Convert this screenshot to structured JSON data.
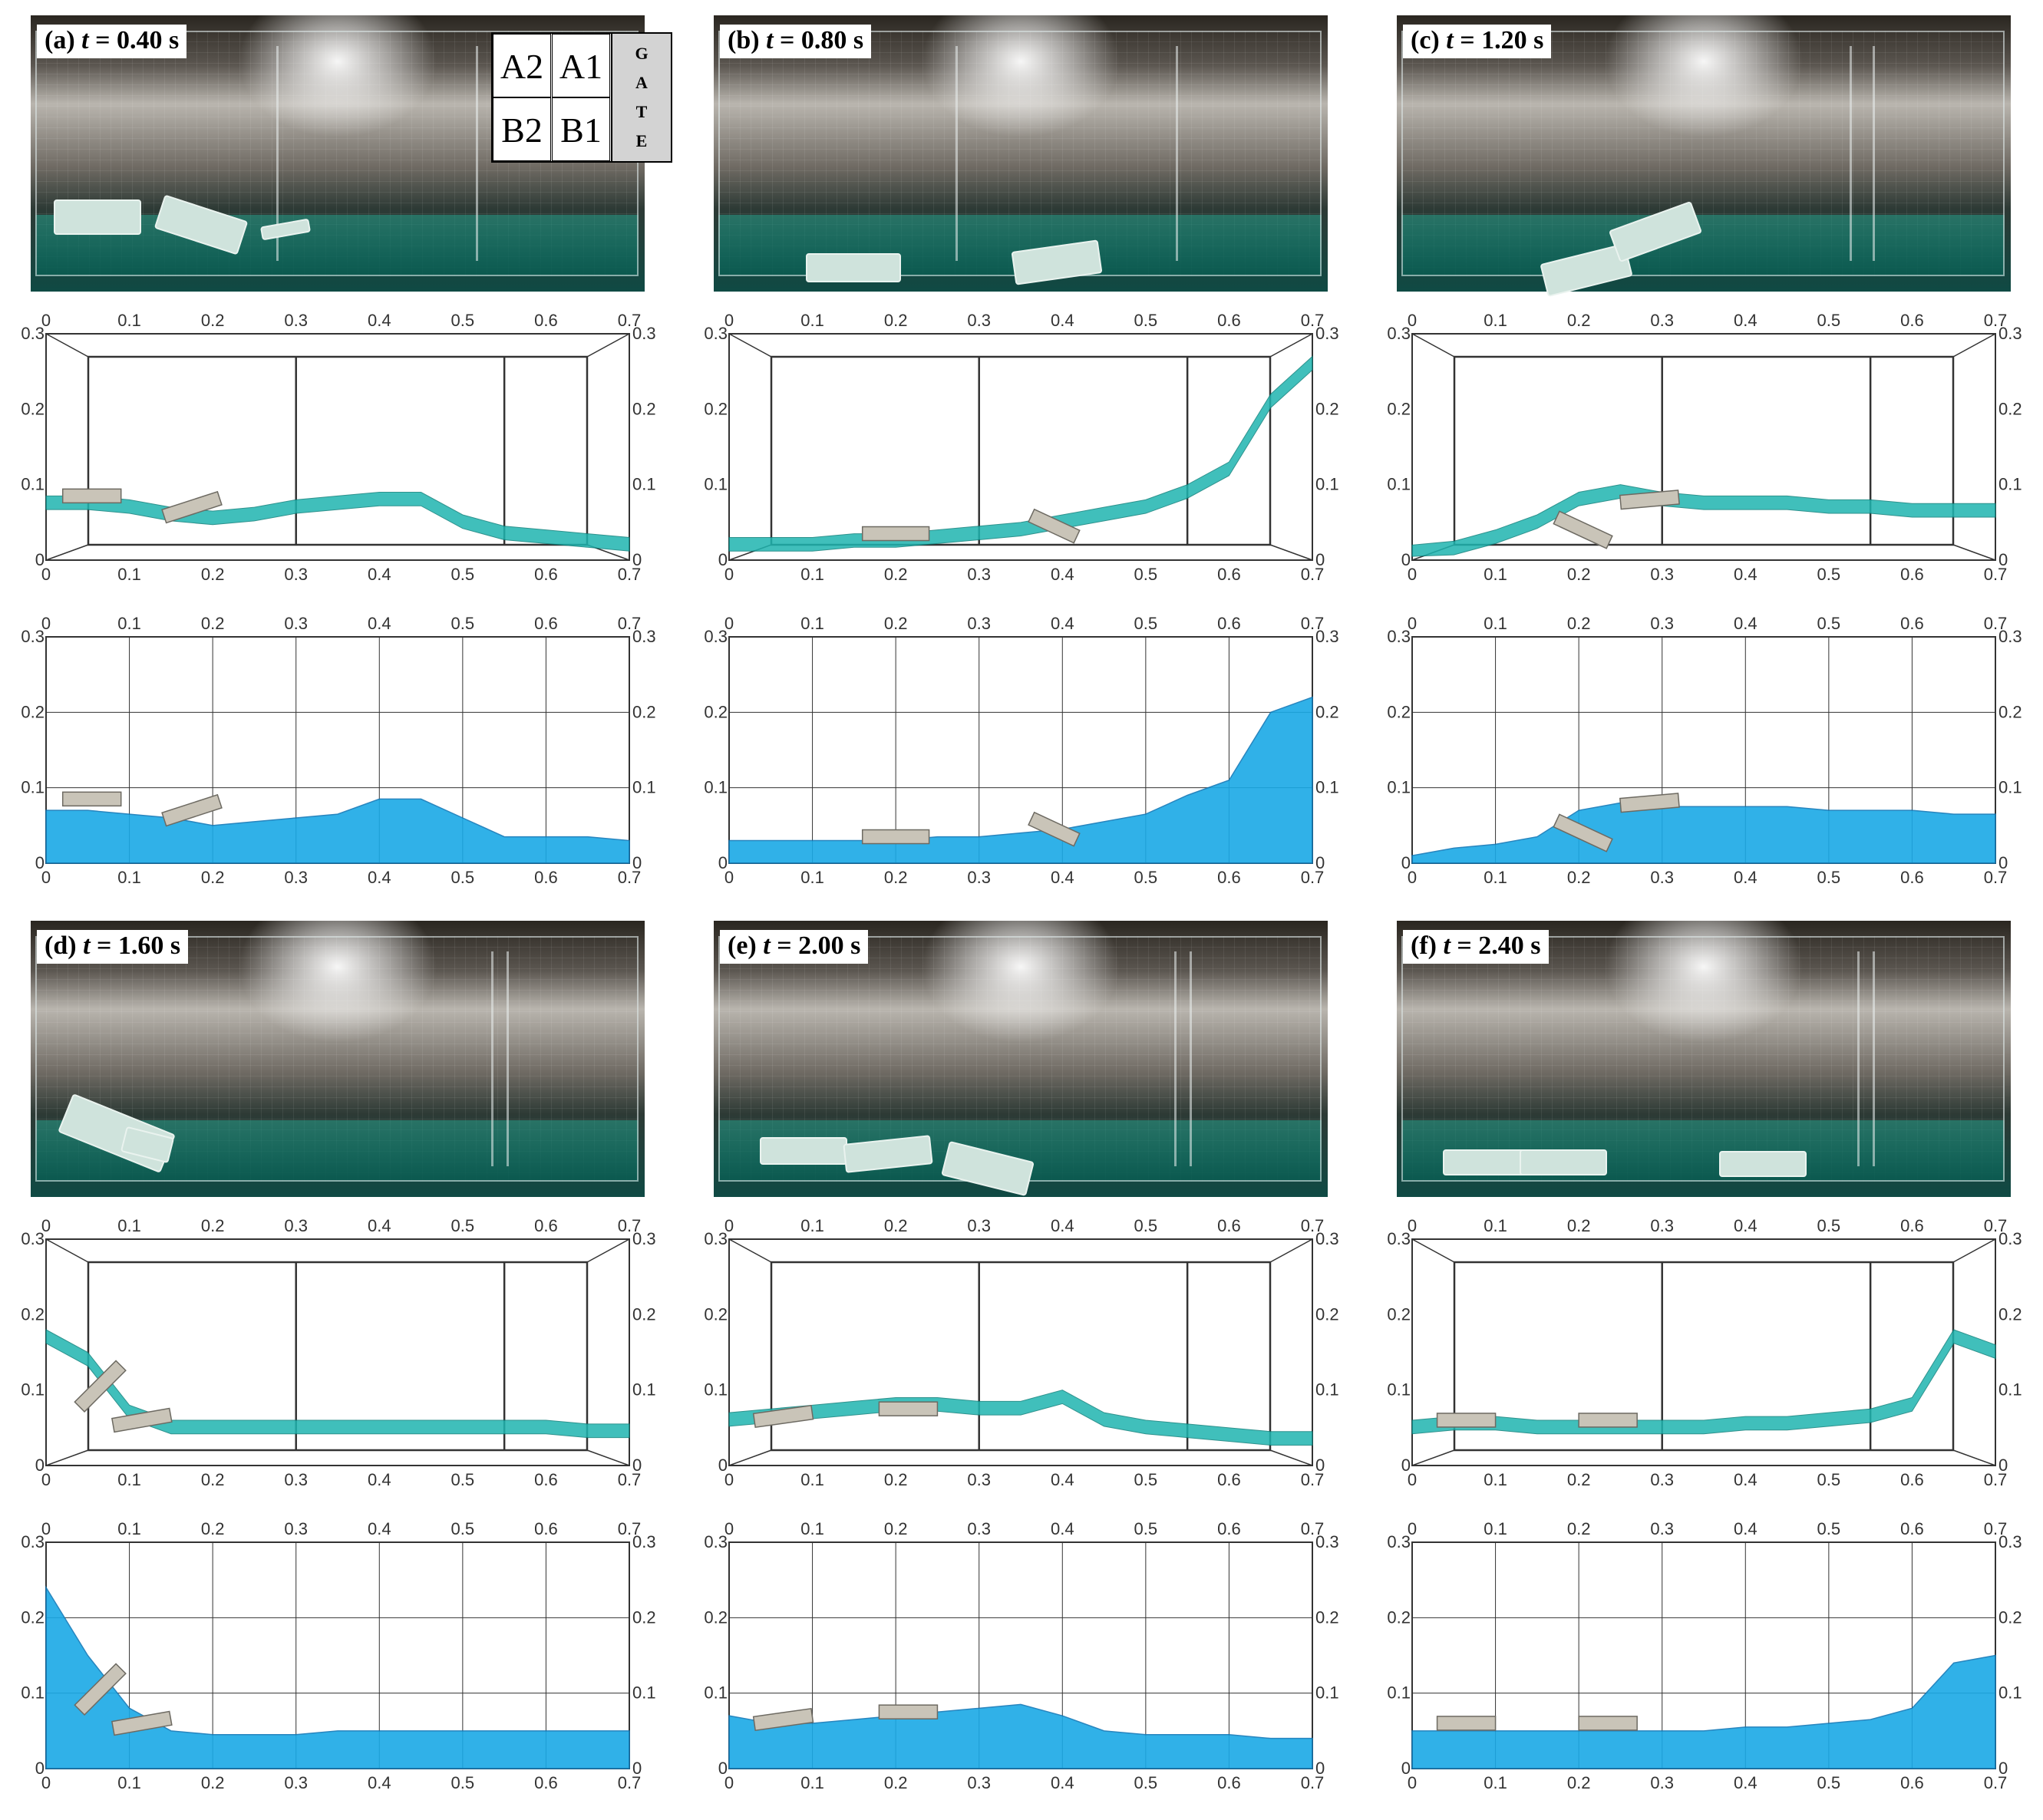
{
  "panels": [
    {
      "label": "(a) t = 0.40 s",
      "prefix": "(a) ",
      "var": "t",
      "rest": " = 0.40 s"
    },
    {
      "label": "(b) t = 0.80 s",
      "prefix": "(b) ",
      "var": "t",
      "rest": " = 0.80 s"
    },
    {
      "label": "(c) t = 1.20 s",
      "prefix": "(c) ",
      "var": "t",
      "rest": " = 1.20 s"
    },
    {
      "label": "(d) t = 1.60 s",
      "prefix": "(d) ",
      "var": "t",
      "rest": " = 1.60 s"
    },
    {
      "label": "(e) t = 2.00 s",
      "prefix": "(e) ",
      "var": "t",
      "rest": " = 2.00 s"
    },
    {
      "label": "(f) t = 2.40 s",
      "prefix": "(f) ",
      "var": "t",
      "rest": " = 2.40 s"
    }
  ],
  "legend": {
    "cells": [
      "A2",
      "A1",
      "B2",
      "B1"
    ],
    "gate": [
      "G",
      "A",
      "T",
      "E"
    ]
  },
  "axes": {
    "x_ticks": [
      "0",
      "0.1",
      "0.2",
      "0.3",
      "0.4",
      "0.5",
      "0.6",
      "0.7"
    ],
    "y_ticks": [
      "0",
      "0.1",
      "0.2",
      "0.3"
    ]
  },
  "colors": {
    "particles": "#1fb5b0",
    "mesh_fluid": "#1aa9e6",
    "block": "#c9c4b8",
    "grid": "#333333"
  },
  "chart_data": [
    {
      "type": "area",
      "name": "a-particle",
      "x": [
        0.0,
        0.05,
        0.1,
        0.15,
        0.2,
        0.25,
        0.3,
        0.35,
        0.4,
        0.45,
        0.5,
        0.55,
        0.6,
        0.65,
        0.7
      ],
      "y": [
        0.085,
        0.085,
        0.08,
        0.07,
        0.065,
        0.07,
        0.08,
        0.085,
        0.09,
        0.09,
        0.06,
        0.045,
        0.04,
        0.035,
        0.03
      ],
      "xlim": [
        0,
        0.7
      ],
      "ylim": [
        0,
        0.3
      ]
    },
    {
      "type": "area",
      "name": "a-mesh",
      "x": [
        0.0,
        0.05,
        0.1,
        0.15,
        0.2,
        0.25,
        0.3,
        0.35,
        0.4,
        0.45,
        0.5,
        0.55,
        0.6,
        0.65,
        0.7
      ],
      "y": [
        0.07,
        0.07,
        0.065,
        0.06,
        0.05,
        0.055,
        0.06,
        0.065,
        0.085,
        0.085,
        0.06,
        0.035,
        0.035,
        0.035,
        0.03
      ],
      "xlim": [
        0,
        0.7
      ],
      "ylim": [
        0,
        0.3
      ]
    },
    {
      "type": "area",
      "name": "b-particle",
      "x": [
        0.0,
        0.05,
        0.1,
        0.15,
        0.2,
        0.25,
        0.3,
        0.35,
        0.4,
        0.45,
        0.5,
        0.55,
        0.6,
        0.65,
        0.7
      ],
      "y": [
        0.03,
        0.03,
        0.03,
        0.035,
        0.035,
        0.04,
        0.045,
        0.05,
        0.06,
        0.07,
        0.08,
        0.1,
        0.13,
        0.22,
        0.27
      ],
      "xlim": [
        0,
        0.7
      ],
      "ylim": [
        0,
        0.3
      ]
    },
    {
      "type": "area",
      "name": "b-mesh",
      "x": [
        0.0,
        0.05,
        0.1,
        0.15,
        0.2,
        0.25,
        0.3,
        0.35,
        0.4,
        0.45,
        0.5,
        0.55,
        0.6,
        0.65,
        0.7
      ],
      "y": [
        0.03,
        0.03,
        0.03,
        0.03,
        0.03,
        0.035,
        0.035,
        0.04,
        0.045,
        0.055,
        0.065,
        0.09,
        0.11,
        0.2,
        0.22
      ],
      "xlim": [
        0,
        0.7
      ],
      "ylim": [
        0,
        0.3
      ]
    },
    {
      "type": "area",
      "name": "c-particle",
      "x": [
        0.0,
        0.05,
        0.1,
        0.15,
        0.2,
        0.25,
        0.3,
        0.35,
        0.4,
        0.45,
        0.5,
        0.55,
        0.6,
        0.65,
        0.7
      ],
      "y": [
        0.02,
        0.025,
        0.04,
        0.06,
        0.09,
        0.1,
        0.09,
        0.085,
        0.085,
        0.085,
        0.08,
        0.08,
        0.075,
        0.075,
        0.075
      ],
      "xlim": [
        0,
        0.7
      ],
      "ylim": [
        0,
        0.3
      ]
    },
    {
      "type": "area",
      "name": "c-mesh",
      "x": [
        0.0,
        0.05,
        0.1,
        0.15,
        0.2,
        0.25,
        0.3,
        0.35,
        0.4,
        0.45,
        0.5,
        0.55,
        0.6,
        0.65,
        0.7
      ],
      "y": [
        0.01,
        0.02,
        0.025,
        0.035,
        0.07,
        0.08,
        0.075,
        0.075,
        0.075,
        0.075,
        0.07,
        0.07,
        0.07,
        0.065,
        0.065
      ],
      "xlim": [
        0,
        0.7
      ],
      "ylim": [
        0,
        0.3
      ]
    },
    {
      "type": "area",
      "name": "d-particle",
      "x": [
        0.0,
        0.05,
        0.1,
        0.15,
        0.2,
        0.25,
        0.3,
        0.35,
        0.4,
        0.45,
        0.5,
        0.55,
        0.6,
        0.65,
        0.7
      ],
      "y": [
        0.18,
        0.15,
        0.08,
        0.06,
        0.06,
        0.06,
        0.06,
        0.06,
        0.06,
        0.06,
        0.06,
        0.06,
        0.06,
        0.055,
        0.055
      ],
      "xlim": [
        0,
        0.7
      ],
      "ylim": [
        0,
        0.3
      ]
    },
    {
      "type": "area",
      "name": "d-mesh",
      "x": [
        0.0,
        0.05,
        0.1,
        0.15,
        0.2,
        0.25,
        0.3,
        0.35,
        0.4,
        0.45,
        0.5,
        0.55,
        0.6,
        0.65,
        0.7
      ],
      "y": [
        0.24,
        0.15,
        0.08,
        0.05,
        0.045,
        0.045,
        0.045,
        0.05,
        0.05,
        0.05,
        0.05,
        0.05,
        0.05,
        0.05,
        0.05
      ],
      "xlim": [
        0,
        0.7
      ],
      "ylim": [
        0,
        0.3
      ]
    },
    {
      "type": "area",
      "name": "e-particle",
      "x": [
        0.0,
        0.05,
        0.1,
        0.15,
        0.2,
        0.25,
        0.3,
        0.35,
        0.4,
        0.45,
        0.5,
        0.55,
        0.6,
        0.65,
        0.7
      ],
      "y": [
        0.07,
        0.075,
        0.08,
        0.085,
        0.09,
        0.09,
        0.085,
        0.085,
        0.1,
        0.07,
        0.06,
        0.055,
        0.05,
        0.045,
        0.045
      ],
      "xlim": [
        0,
        0.7
      ],
      "ylim": [
        0,
        0.3
      ]
    },
    {
      "type": "area",
      "name": "e-mesh",
      "x": [
        0.0,
        0.05,
        0.1,
        0.15,
        0.2,
        0.25,
        0.3,
        0.35,
        0.4,
        0.45,
        0.5,
        0.55,
        0.6,
        0.65,
        0.7
      ],
      "y": [
        0.07,
        0.06,
        0.06,
        0.065,
        0.07,
        0.075,
        0.08,
        0.085,
        0.07,
        0.05,
        0.045,
        0.045,
        0.045,
        0.04,
        0.04
      ],
      "xlim": [
        0,
        0.7
      ],
      "ylim": [
        0,
        0.3
      ]
    },
    {
      "type": "area",
      "name": "f-particle",
      "x": [
        0.0,
        0.05,
        0.1,
        0.15,
        0.2,
        0.25,
        0.3,
        0.35,
        0.4,
        0.45,
        0.5,
        0.55,
        0.6,
        0.65,
        0.7
      ],
      "y": [
        0.06,
        0.065,
        0.065,
        0.06,
        0.06,
        0.06,
        0.06,
        0.06,
        0.065,
        0.065,
        0.07,
        0.075,
        0.09,
        0.18,
        0.16
      ],
      "xlim": [
        0,
        0.7
      ],
      "ylim": [
        0,
        0.3
      ]
    },
    {
      "type": "area",
      "name": "f-mesh",
      "x": [
        0.0,
        0.05,
        0.1,
        0.15,
        0.2,
        0.25,
        0.3,
        0.35,
        0.4,
        0.45,
        0.5,
        0.55,
        0.6,
        0.65,
        0.7
      ],
      "y": [
        0.05,
        0.05,
        0.05,
        0.05,
        0.05,
        0.05,
        0.05,
        0.05,
        0.055,
        0.055,
        0.06,
        0.065,
        0.08,
        0.14,
        0.15
      ],
      "xlim": [
        0,
        0.7
      ],
      "ylim": [
        0,
        0.3
      ]
    }
  ]
}
